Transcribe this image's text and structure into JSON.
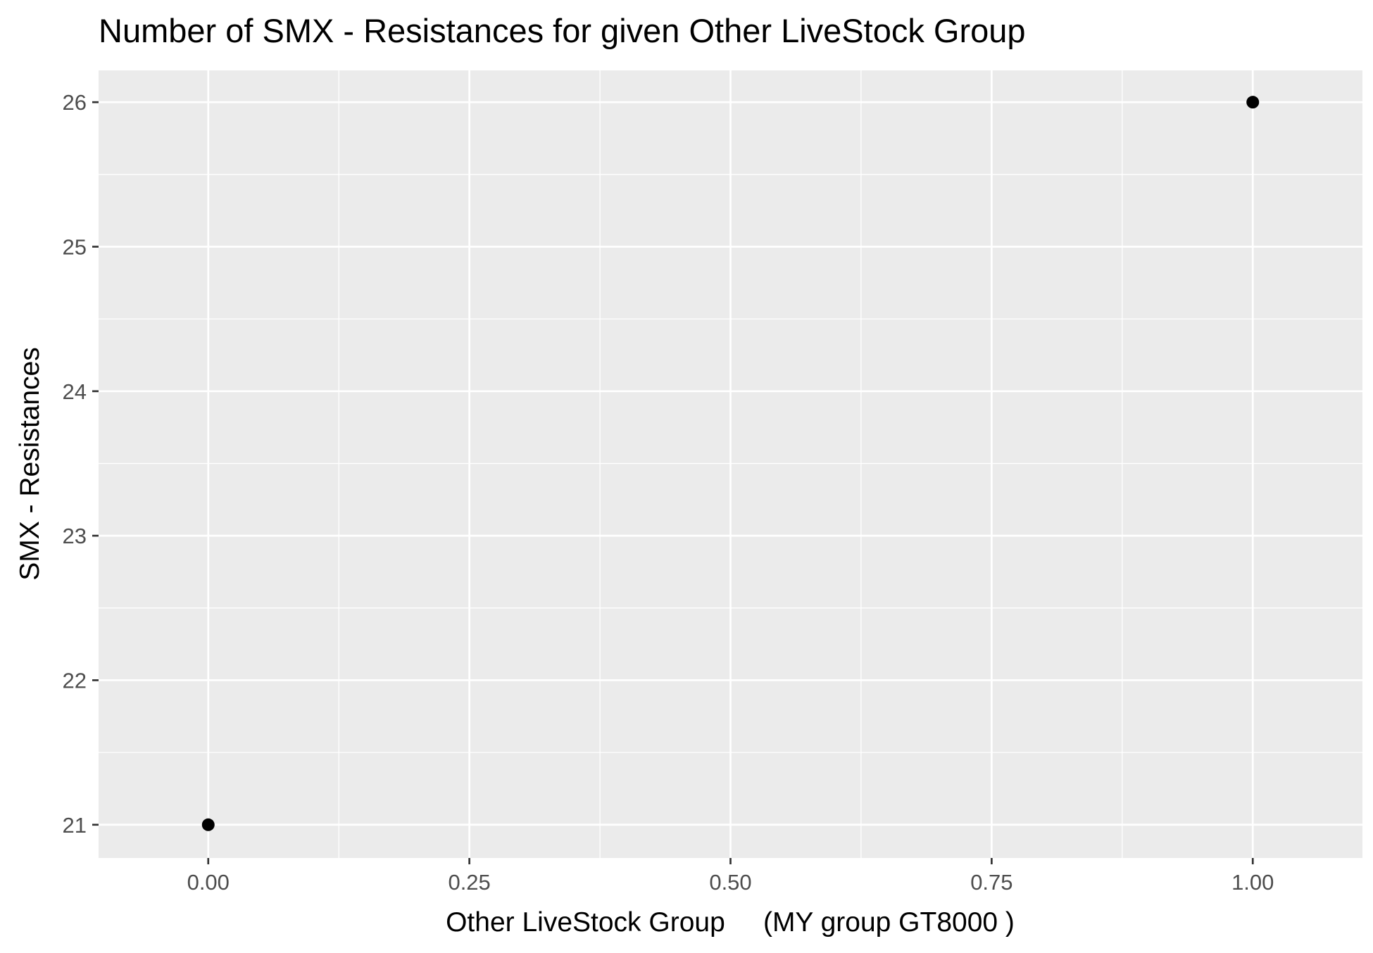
{
  "chart_data": {
    "type": "scatter",
    "title": "Number of SMX - Resistances for given Other LiveStock Group",
    "xlabel": "Other LiveStock Group     (MY group GT8000 )",
    "ylabel": "SMX - Resistances",
    "xlim": [
      -0.105,
      1.105
    ],
    "ylim": [
      20.77,
      26.22
    ],
    "x_ticks": [
      0.0,
      0.25,
      0.5,
      0.75,
      1.0
    ],
    "x_tick_labels": [
      "0.00",
      "0.25",
      "0.50",
      "0.75",
      "1.00"
    ],
    "y_ticks": [
      21,
      22,
      23,
      24,
      25,
      26
    ],
    "y_tick_labels": [
      "21",
      "22",
      "23",
      "24",
      "25",
      "26"
    ],
    "grid": true,
    "legend": "none",
    "points": [
      {
        "x": 0.0,
        "y": 21
      },
      {
        "x": 1.0,
        "y": 26
      }
    ],
    "colors": {
      "panel_background": "#ebebeb",
      "grid_major": "#ffffff",
      "grid_minor": "#ffffff",
      "point": "#000000",
      "tick_text": "#4d4d4d",
      "axis_title": "#000000"
    }
  }
}
